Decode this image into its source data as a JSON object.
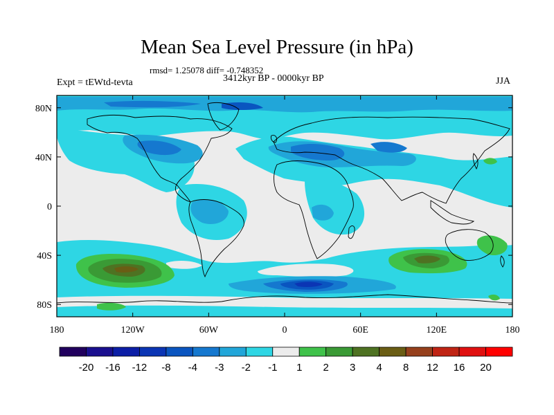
{
  "title": "Mean Sea Level Pressure (in hPa)",
  "stats_label": "rmsd= 1.25078 diff= -0.748352",
  "period_label": "3412kyr BP - 0000kyr BP",
  "experiment_label": "Expt = tEWtd-tevta",
  "season_label": "JJA",
  "map": {
    "projection": "cylindrical-equidistant",
    "lon_range": [
      -180,
      180
    ],
    "lat_range": [
      -90,
      90
    ],
    "background_class": "-1 to 1",
    "x_ticks": [
      {
        "lon": -180,
        "label": "180"
      },
      {
        "lon": -120,
        "label": "120W"
      },
      {
        "lon": -60,
        "label": "60W"
      },
      {
        "lon": 0,
        "label": "0"
      },
      {
        "lon": 60,
        "label": "60E"
      },
      {
        "lon": 120,
        "label": "120E"
      },
      {
        "lon": 180,
        "label": "180"
      }
    ],
    "y_ticks": [
      {
        "lat": 80,
        "label": "80N"
      },
      {
        "lat": 40,
        "label": "40N"
      },
      {
        "lat": 0,
        "label": "0"
      },
      {
        "lat": -40,
        "label": "40S"
      },
      {
        "lat": -80,
        "label": "80S"
      }
    ]
  },
  "colorbar": {
    "labels": [
      "-20",
      "-16",
      "-12",
      "-8",
      "-4",
      "-3",
      "-2",
      "-1",
      "1",
      "2",
      "3",
      "4",
      "8",
      "12",
      "16",
      "20"
    ],
    "colors": [
      "#21005e",
      "#1a0f8f",
      "#0c1ea6",
      "#0b35b4",
      "#0a55c0",
      "#1578cf",
      "#21a6d9",
      "#2ed6e4",
      "#ececec",
      "#3fc24a",
      "#3a9a35",
      "#4e7222",
      "#6a5d14",
      "#96401c",
      "#c02414",
      "#e01010",
      "#ff0000"
    ]
  },
  "colors": {
    "ocean_neutral": "#ececec",
    "light_blue": "#2ed6e4",
    "mid_blue": "#21a6d9",
    "blue": "#1578cf",
    "dark_blue": "#0a55c0",
    "navy": "#0b35b4",
    "green": "#3fc24a",
    "dark_green": "#3a9a35",
    "olive": "#4e7222",
    "brown": "#6a5d14"
  }
}
